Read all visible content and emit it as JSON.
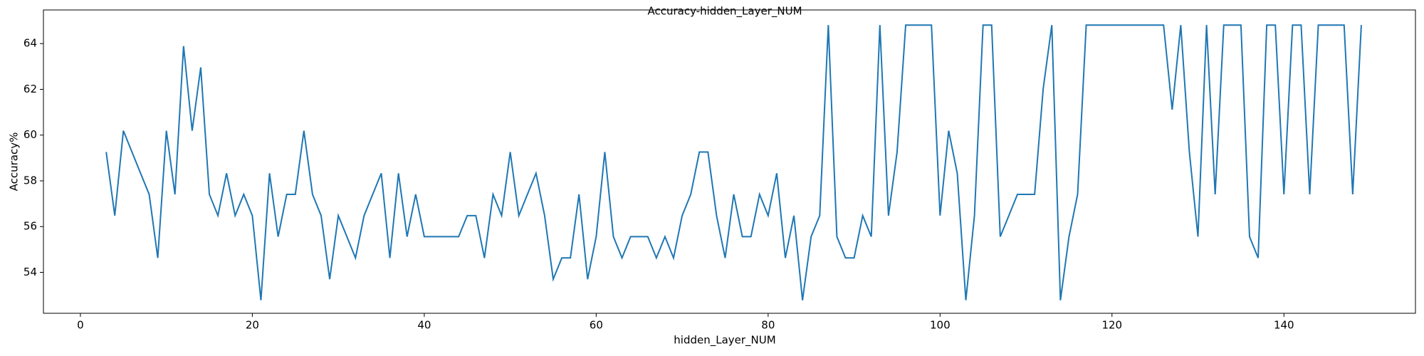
{
  "chart_data": {
    "type": "line",
    "title": "Accuracy-hidden_Layer_NUM",
    "x_label": "hidden_Layer_NUM",
    "y_label": "Accuracy%",
    "x": [
      3,
      4,
      5,
      6,
      7,
      8,
      9,
      10,
      11,
      12,
      13,
      14,
      15,
      16,
      17,
      18,
      19,
      20,
      21,
      22,
      23,
      24,
      25,
      26,
      27,
      28,
      29,
      30,
      31,
      32,
      33,
      34,
      35,
      36,
      37,
      38,
      39,
      40,
      41,
      42,
      43,
      44,
      45,
      46,
      47,
      48,
      49,
      50,
      51,
      52,
      53,
      54,
      55,
      56,
      57,
      58,
      59,
      60,
      61,
      62,
      63,
      64,
      65,
      66,
      67,
      68,
      69,
      70,
      71,
      72,
      73,
      74,
      75,
      76,
      77,
      78,
      79,
      80,
      81,
      82,
      83,
      84,
      85,
      86,
      87,
      88,
      89,
      90,
      91,
      92,
      93,
      94,
      95,
      96,
      97,
      98,
      99,
      100,
      101,
      102,
      103,
      104,
      105,
      106,
      107,
      108,
      109,
      110,
      111,
      112,
      113,
      114,
      115,
      116,
      117,
      118,
      119,
      120,
      121,
      122,
      123,
      124,
      125,
      126,
      127,
      128,
      129,
      130,
      131,
      132,
      133,
      134,
      135,
      136,
      137,
      138,
      139,
      140,
      141,
      142,
      143,
      144,
      145,
      146,
      147,
      148,
      149
    ],
    "series": [
      {
        "name": "accuracy",
        "color": "#1f77b4",
        "values": [
          59.26,
          56.48,
          60.19,
          59.26,
          58.33,
          57.41,
          54.63,
          60.19,
          57.41,
          63.89,
          60.19,
          62.96,
          57.41,
          56.48,
          58.33,
          56.48,
          57.41,
          56.48,
          52.78,
          58.33,
          55.56,
          57.41,
          57.41,
          60.19,
          57.41,
          56.48,
          53.7,
          56.48,
          55.56,
          54.63,
          56.48,
          57.41,
          58.33,
          54.63,
          58.33,
          55.56,
          57.41,
          55.56,
          55.56,
          55.56,
          55.56,
          55.56,
          56.48,
          56.48,
          54.63,
          57.41,
          56.48,
          59.26,
          56.48,
          57.41,
          58.33,
          56.48,
          53.7,
          54.63,
          54.63,
          57.41,
          53.7,
          55.56,
          59.26,
          55.56,
          54.63,
          55.56,
          55.56,
          55.56,
          54.63,
          55.56,
          54.63,
          56.48,
          57.41,
          59.26,
          59.26,
          56.48,
          54.63,
          57.41,
          55.56,
          55.56,
          57.41,
          56.48,
          58.33,
          54.63,
          56.48,
          52.78,
          55.56,
          56.48,
          64.81,
          55.56,
          54.63,
          54.63,
          56.48,
          55.56,
          64.81,
          56.48,
          59.26,
          64.81,
          64.81,
          64.81,
          64.81,
          56.48,
          60.19,
          58.33,
          52.78,
          56.48,
          64.81,
          64.81,
          55.56,
          56.48,
          57.41,
          57.41,
          57.41,
          62.04,
          64.81,
          52.78,
          55.56,
          57.41,
          64.81,
          64.81,
          64.81,
          64.81,
          64.81,
          64.81,
          64.81,
          64.81,
          64.81,
          64.81,
          61.11,
          64.81,
          59.26,
          55.56,
          64.81,
          57.41,
          64.81,
          64.81,
          64.81,
          55.56,
          54.63,
          64.81,
          64.81,
          57.41,
          64.81,
          64.81,
          57.41,
          64.81,
          64.81,
          64.81,
          64.81,
          57.41,
          64.81
        ]
      }
    ],
    "xlim": [
      -4.3,
      155.3
    ],
    "xticks": [
      0,
      20,
      40,
      60,
      80,
      100,
      120,
      140
    ],
    "ylim": [
      52.21,
      65.47
    ],
    "yticks": [
      54,
      56,
      58,
      60,
      62,
      64
    ]
  }
}
